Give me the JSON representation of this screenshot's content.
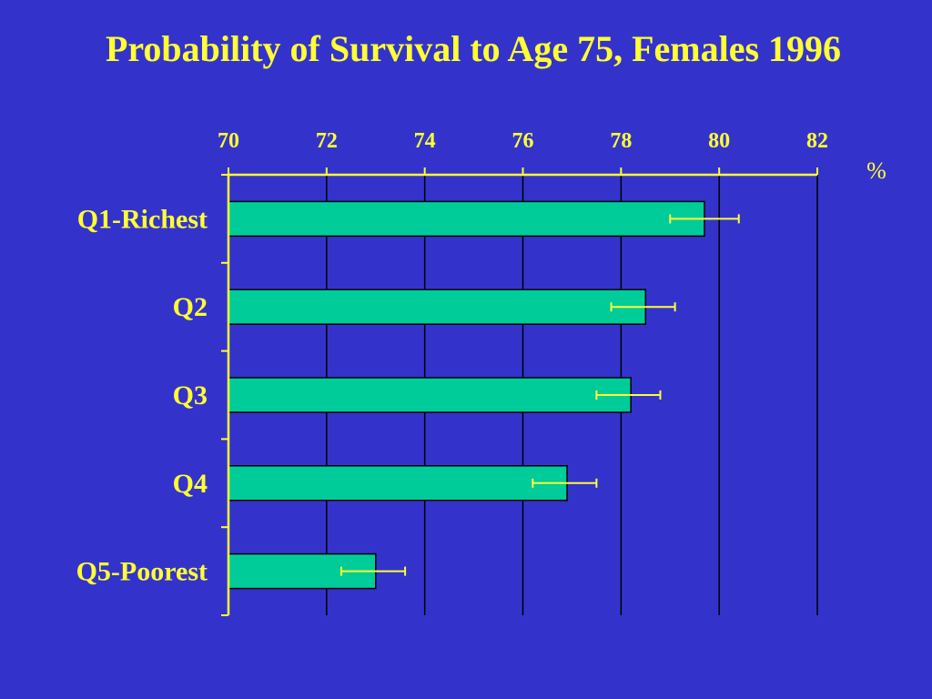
{
  "chart_data": {
    "type": "bar",
    "orientation": "horizontal",
    "title": "Probability of Survival to Age 75, Females 1996",
    "unit_label": "%",
    "xlim": [
      70,
      82
    ],
    "x_ticks": [
      "70",
      "72",
      "74",
      "76",
      "78",
      "80",
      "82"
    ],
    "categories": [
      "Q1-Richest",
      "Q2",
      "Q3",
      "Q4",
      "Q5-Poorest"
    ],
    "values": [
      79.7,
      78.5,
      78.2,
      76.9,
      73.0
    ],
    "error_low": [
      79.0,
      77.8,
      77.5,
      76.2,
      72.3
    ],
    "error_high": [
      80.4,
      79.1,
      78.8,
      77.5,
      73.6
    ],
    "grid": true,
    "legend": "none",
    "colors": {
      "background": "#3333cc",
      "bar": "#00cc99",
      "text": "#ffff33",
      "axis": "#ffff33",
      "gridline": "#000000",
      "error_bar": "#ffff33"
    }
  }
}
